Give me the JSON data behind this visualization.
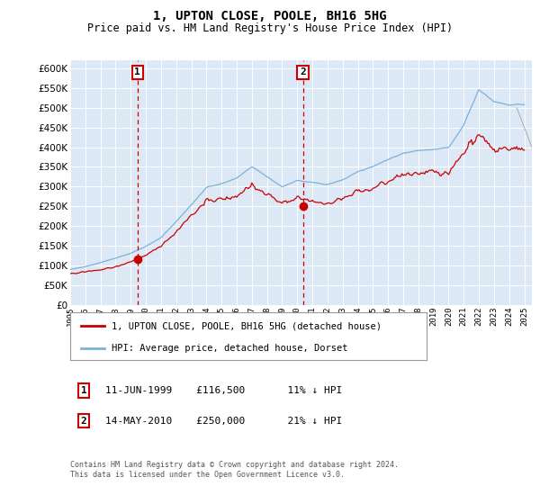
{
  "title": "1, UPTON CLOSE, POOLE, BH16 5HG",
  "subtitle": "Price paid vs. HM Land Registry's House Price Index (HPI)",
  "ylim": [
    0,
    620000
  ],
  "yticks": [
    0,
    50000,
    100000,
    150000,
    200000,
    250000,
    300000,
    350000,
    400000,
    450000,
    500000,
    550000,
    600000
  ],
  "plot_bg": "#dce8f5",
  "grid_color": "#ffffff",
  "hpi_color": "#7ab3d9",
  "price_color": "#cc0000",
  "vline_color": "#cc0000",
  "annotation_box_color": "#cc0000",
  "legend_price_label": "1, UPTON CLOSE, POOLE, BH16 5HG (detached house)",
  "legend_hpi_label": "HPI: Average price, detached house, Dorset",
  "purchase1_note": "11-JUN-1999    £116,500       11% ↓ HPI",
  "purchase2_note": "14-MAY-2010    £250,000       21% ↓ HPI",
  "footer": "Contains HM Land Registry data © Crown copyright and database right 2024.\nThis data is licensed under the Open Government Licence v3.0.",
  "purchase1_x": 1999.44,
  "purchase1_price": 116500,
  "purchase2_x": 2010.37,
  "purchase2_price": 250000,
  "xlim_left": 1995.0,
  "xlim_right": 2025.5
}
